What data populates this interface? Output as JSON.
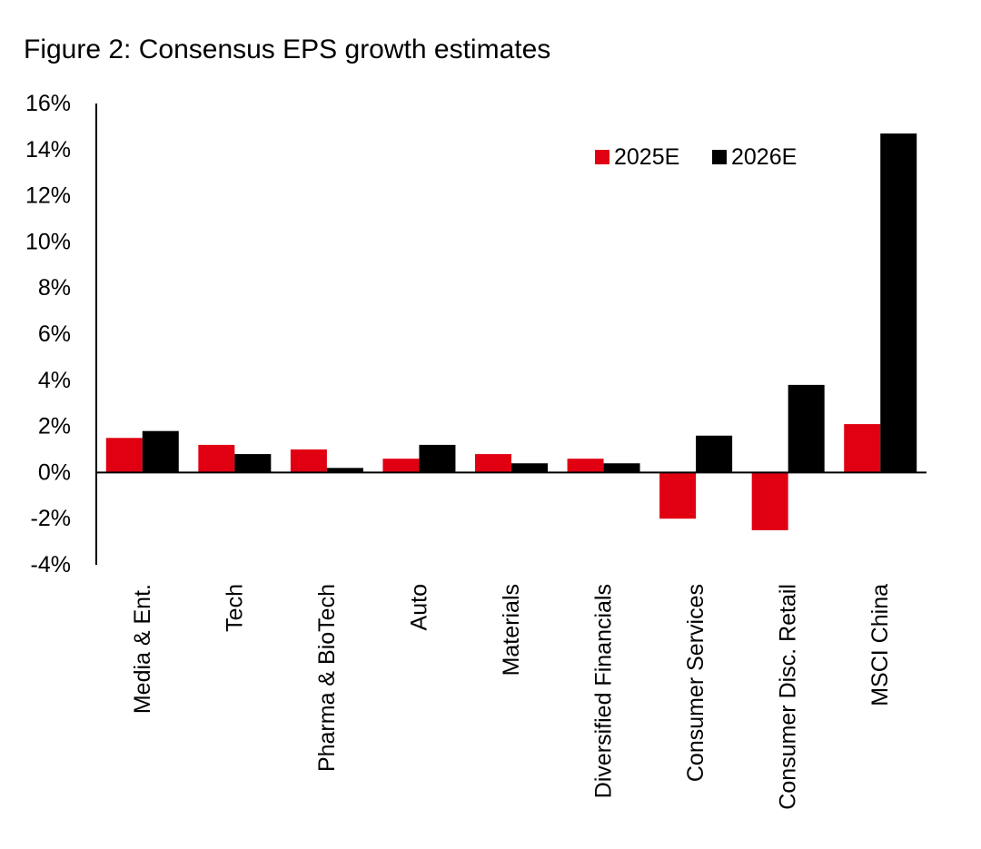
{
  "figure": {
    "title": "Figure 2: Consensus EPS growth estimates"
  },
  "chart_data": {
    "type": "bar",
    "title": "Figure 2: Consensus EPS growth estimates",
    "xlabel": "",
    "ylabel": "",
    "ylim": [
      -4,
      16
    ],
    "yticks": [
      -4,
      -2,
      0,
      2,
      4,
      6,
      8,
      10,
      12,
      14,
      16
    ],
    "ytick_labels": [
      "-4%",
      "-2%",
      "0%",
      "2%",
      "4%",
      "6%",
      "8%",
      "10%",
      "12%",
      "14%",
      "16%"
    ],
    "grid": false,
    "legend_position": "top-right",
    "categories": [
      "Media & Ent.",
      "Tech",
      "Pharma & BioTech",
      "Auto",
      "Materials",
      "Diversified Financials",
      "Consumer Services",
      "Consumer Disc. Retail",
      "MSCI China"
    ],
    "series": [
      {
        "name": "2025E",
        "color": "#e00012",
        "values": [
          1.5,
          1.2,
          1.0,
          0.6,
          0.8,
          0.6,
          -2.0,
          -2.5,
          2.1
        ]
      },
      {
        "name": "2026E",
        "color": "#000000",
        "values": [
          1.8,
          0.8,
          0.2,
          1.2,
          0.4,
          0.4,
          1.6,
          3.8,
          14.7
        ]
      }
    ]
  }
}
